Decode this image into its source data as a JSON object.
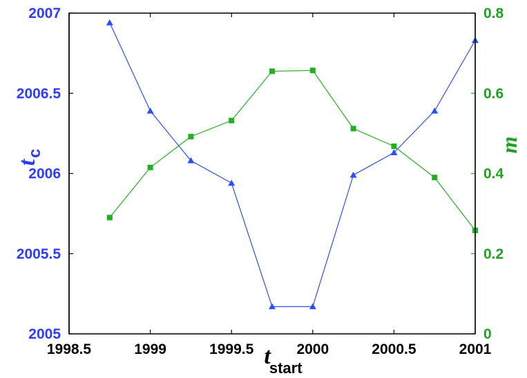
{
  "chart_data": {
    "type": "line",
    "x": [
      1998.75,
      1999.0,
      1999.25,
      1999.5,
      1999.75,
      2000.0,
      2000.25,
      2000.5,
      2000.75,
      2001.0
    ],
    "xlim": [
      1998.5,
      2001
    ],
    "xticks": [
      "1998.5",
      "1999",
      "1999.5",
      "2000",
      "2000.5",
      "2001"
    ],
    "xticks_values": [
      1998.5,
      1999,
      1999.5,
      2000,
      2000.5,
      2001
    ],
    "xlabel": {
      "main": "t",
      "sub": "start"
    },
    "left_axis": {
      "label": {
        "main": "t",
        "sub": "c"
      },
      "ylim": [
        2005,
        2007
      ],
      "ticks": [
        "2005",
        "2005.5",
        "2006",
        "2006.5",
        "2007"
      ],
      "ticks_values": [
        2005,
        2005.5,
        2006,
        2006.5,
        2007
      ],
      "color": "#2d3df5"
    },
    "right_axis": {
      "label": "m",
      "ylim": [
        0,
        0.8
      ],
      "ticks": [
        "0",
        "0.2",
        "0.4",
        "0.6",
        "0.8"
      ],
      "ticks_values": [
        0,
        0.2,
        0.4,
        0.6,
        0.8
      ],
      "color": "#1fa31f"
    },
    "series": [
      {
        "axis": "left",
        "marker": "triangle",
        "color": "#2d4df5",
        "values": [
          2006.94,
          2006.39,
          2006.08,
          2005.94,
          2005.17,
          2005.17,
          2005.99,
          2006.13,
          2006.39,
          2006.83
        ]
      },
      {
        "axis": "right",
        "marker": "square",
        "color": "#22b022",
        "values": [
          0.29,
          0.415,
          0.492,
          0.532,
          0.655,
          0.657,
          0.512,
          0.468,
          0.39,
          0.258
        ]
      }
    ],
    "grid": false
  }
}
